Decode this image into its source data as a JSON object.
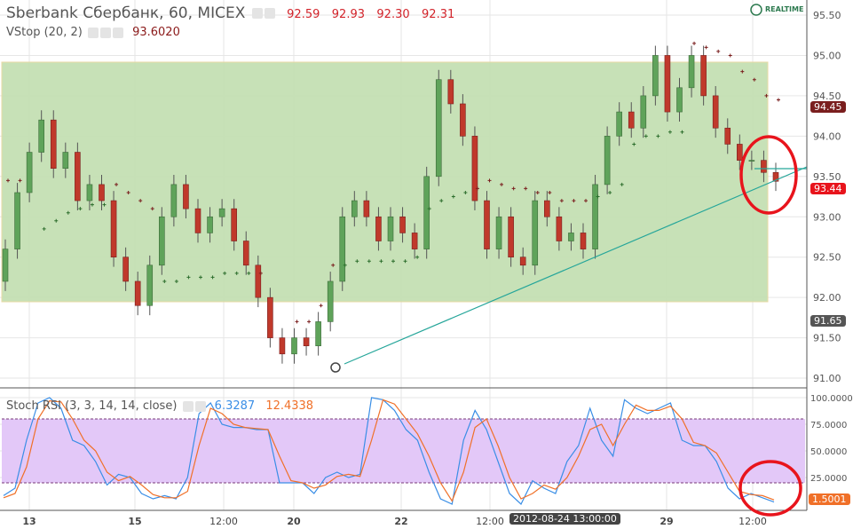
{
  "header": {
    "title": "Sberbank Сбербанк, 60, MICEX",
    "ohlc": [
      "92.59",
      "92.93",
      "92.30",
      "92.31"
    ],
    "vstop_label": "VStop (20, 2)",
    "vstop_value": "93.6020",
    "realtime": "REALTIME"
  },
  "stoch": {
    "label": "Stoch RSI (3, 3, 14, 14, close)",
    "k_value": "6.3287",
    "d_value": "12.4338",
    "last_tag": "1.5001"
  },
  "price_tags": {
    "high": "94.45",
    "last": "93.44",
    "low": "91.65"
  },
  "crosshair_time": "2012-08-24 13:00:00",
  "colors": {
    "up": "#5fa35a",
    "down": "#c0392b",
    "box": "#c5e0b4",
    "k": "#3a8ee6",
    "d": "#f07028",
    "band": "#e3c8f8"
  },
  "chart_data": [
    {
      "type": "candlestick",
      "title": "Sberbank Сбербанк, 60, MICEX",
      "ylim": [
        90.9,
        95.7
      ],
      "yticks": [
        "95.50",
        "95.00",
        "94.50",
        "94.00",
        "93.50",
        "93.00",
        "92.50",
        "92.00",
        "91.50",
        "91.00"
      ],
      "xticks": [
        "13",
        "15",
        "12:00",
        "20",
        "22",
        "12:00",
        "29",
        "12:00"
      ],
      "open": 92.2,
      "close": [
        92.6,
        93.3,
        93.8,
        94.2,
        93.6,
        93.8,
        93.2,
        93.4,
        93.2,
        92.5,
        92.2,
        91.9,
        92.4,
        93.0,
        93.4,
        93.1,
        92.8,
        93.0,
        93.1,
        92.7,
        92.4,
        92.0,
        91.5,
        91.3,
        91.5,
        91.4,
        91.7,
        92.2,
        93.0,
        93.2,
        93.0,
        92.7,
        93.0,
        92.8,
        92.6,
        93.5,
        94.7,
        94.4,
        94.0,
        93.2,
        92.6,
        93.0,
        92.5,
        92.4,
        93.2,
        93.0,
        92.7,
        92.8,
        92.6,
        93.4,
        94.0,
        94.3,
        94.1,
        94.5,
        95.0,
        94.3,
        94.6,
        95.0,
        94.5,
        94.1,
        93.9,
        93.7,
        93.7,
        93.55,
        93.44
      ],
      "vstop": [
        93.45,
        93.45,
        null,
        92.85,
        92.95,
        93.05,
        93.1,
        93.15,
        93.15,
        93.4,
        93.3,
        93.2,
        93.1,
        92.2,
        92.2,
        92.25,
        92.25,
        92.25,
        92.3,
        92.3,
        92.3,
        92.3,
        null,
        null,
        91.7,
        91.7,
        91.9,
        92.4,
        92.4,
        92.45,
        92.45,
        92.45,
        92.45,
        92.45,
        92.5,
        93.1,
        93.2,
        93.25,
        93.3,
        93.35,
        93.45,
        93.4,
        93.35,
        93.35,
        93.3,
        93.3,
        93.2,
        93.2,
        93.2,
        93.25,
        93.3,
        93.4,
        93.9,
        94.0,
        94.0,
        94.05,
        94.05,
        95.15,
        95.1,
        95.05,
        95.0,
        94.8,
        94.7,
        94.5,
        94.45
      ],
      "range_box": [
        92.0,
        94.95
      ]
    },
    {
      "type": "line",
      "title": "Stoch RSI (3, 3, 14, 14, close)",
      "ylim": [
        0,
        100
      ],
      "yticks": [
        "100.0000",
        "75.0000",
        "50.0000",
        "25.0000"
      ],
      "bands": [
        20,
        80
      ],
      "series": [
        {
          "name": "K",
          "values": [
            8,
            15,
            60,
            95,
            100,
            90,
            60,
            55,
            40,
            18,
            28,
            25,
            10,
            5,
            8,
            5,
            25,
            85,
            95,
            75,
            72,
            72,
            70,
            70,
            20,
            20,
            20,
            10,
            25,
            30,
            25,
            28,
            100,
            98,
            88,
            70,
            60,
            30,
            5,
            0,
            60,
            88,
            70,
            40,
            10,
            0,
            22,
            15,
            10,
            40,
            55,
            90,
            60,
            45,
            98,
            90,
            85,
            90,
            95,
            60,
            55,
            55,
            40,
            15,
            5,
            10,
            6,
            2
          ]
        },
        {
          "name": "D",
          "values": [
            6,
            10,
            35,
            80,
            97,
            96,
            80,
            60,
            50,
            30,
            22,
            26,
            18,
            9,
            6,
            6,
            12,
            55,
            90,
            85,
            75,
            72,
            71,
            70,
            45,
            22,
            20,
            15,
            18,
            26,
            28,
            26,
            60,
            98,
            94,
            80,
            66,
            45,
            20,
            3,
            30,
            72,
            80,
            55,
            25,
            5,
            10,
            18,
            14,
            25,
            45,
            70,
            75,
            55,
            75,
            93,
            88,
            88,
            92,
            80,
            58,
            55,
            48,
            30,
            12,
            9,
            8,
            4
          ]
        }
      ]
    }
  ]
}
